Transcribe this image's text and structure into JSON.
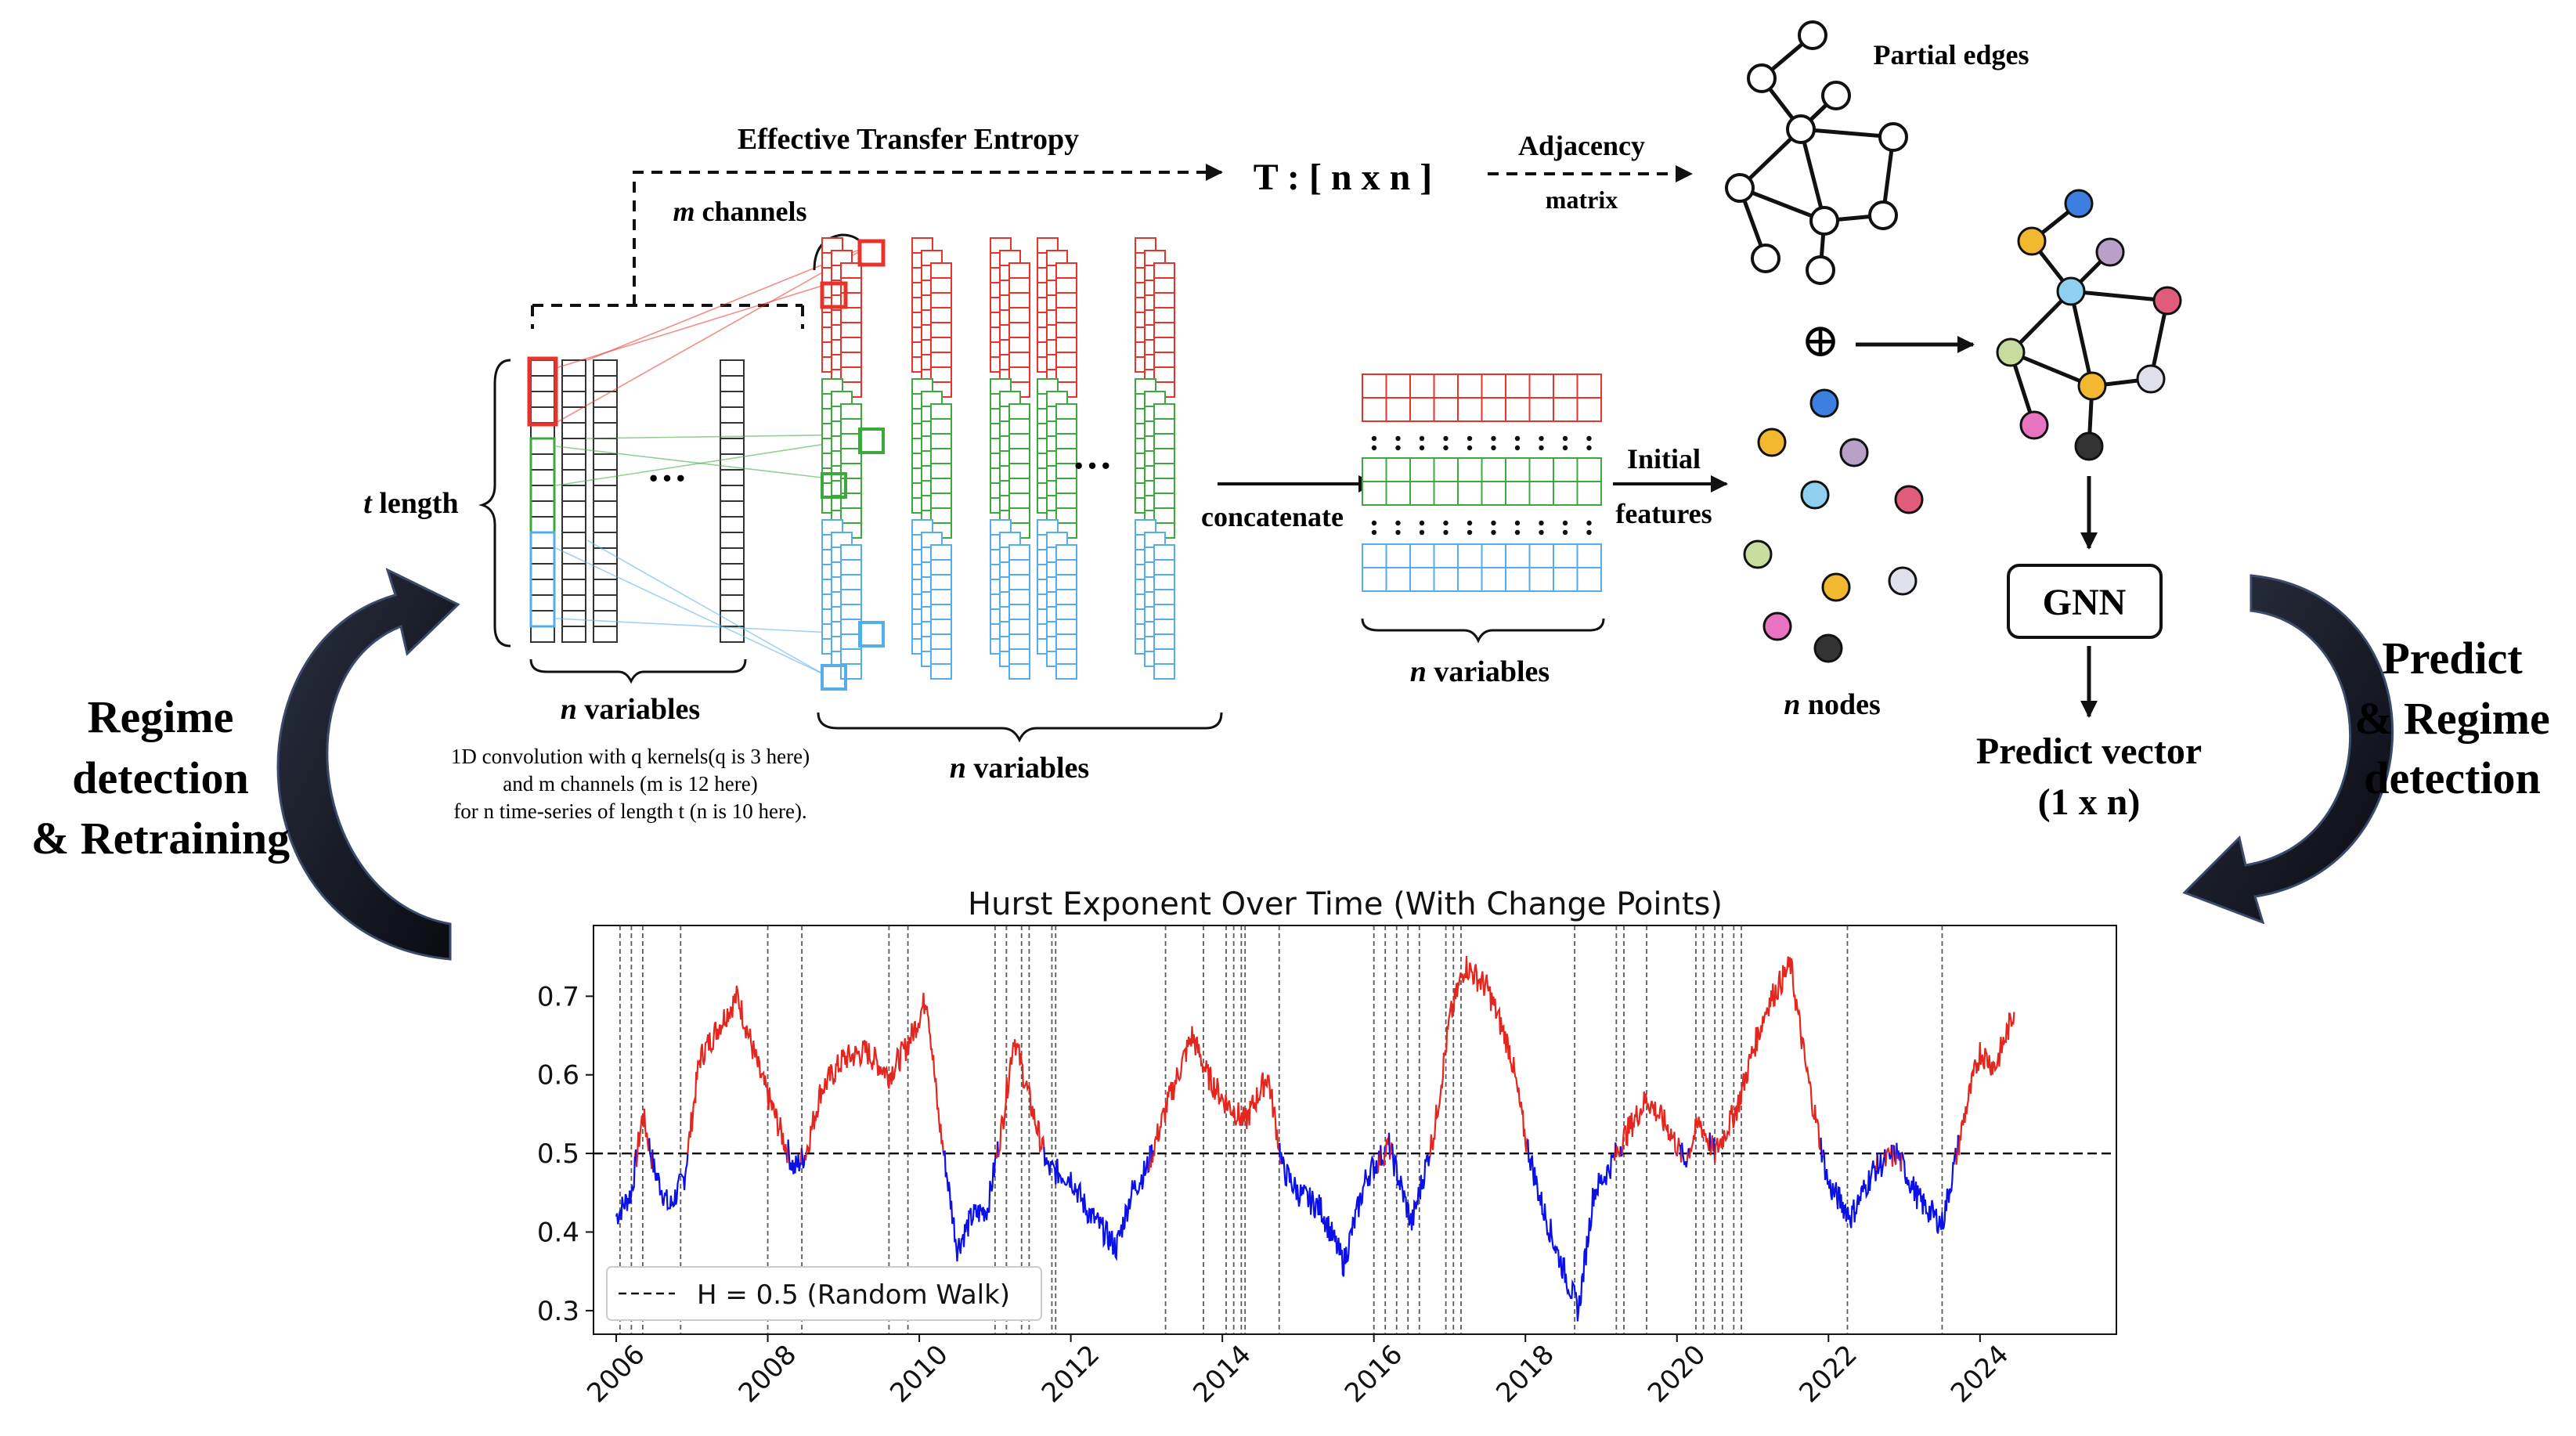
{
  "colors": {
    "red": "#e8332c",
    "green": "#3da83d",
    "blue": "#55aee8",
    "dark": "#222222",
    "chart_red": "#e3261e",
    "chart_blue": "#0a10e6"
  },
  "pipeline": {
    "ete_label": "Effective Transfer Entropy",
    "t_matrix": "T : [ n x n ]",
    "adjacency_line1": "Adjacency",
    "adjacency_line2": "matrix",
    "partial_edges": "Partial edges",
    "m_channels": "m channels",
    "m_channels_italic": "m",
    "m_channels_rest": " channels",
    "t_length_italic": "t",
    "t_length_rest": " length",
    "ellipsis_input": "···",
    "ellipsis_conv": "···",
    "n_variables_input": "n variables",
    "n_variables_conv": "n variables",
    "n_variables_feat": "n variables",
    "n_italic": "n",
    "variables_rest": " variables",
    "caption_line1": "1D convolution with q kernels(q is 3 here)",
    "caption_line2": "and m channels (m is 12 here)",
    "caption_line3": "for n time-series of length t (n is 10 here).",
    "concatenate": "concatenate",
    "initial_line1": "Initial",
    "initial_line2": "features",
    "n_nodes": "n nodes",
    "oplus": "⊕",
    "gnn": "GNN",
    "predict_vector_line1": "Predict vector",
    "predict_vector_line2": "(1 x n)",
    "left_cycle": [
      "Regime",
      "detection",
      "& Retraining"
    ],
    "right_cycle": [
      "Predict",
      "& Regime",
      "detection"
    ]
  },
  "nodes": {
    "colors": [
      "#3d7fe0",
      "#f2b830",
      "#b9a0c8",
      "#8fd0f0",
      "#e05c7a",
      "#c9dca0",
      "#f2b830",
      "#e0e0ea",
      "#e873c0",
      "#333333"
    ]
  },
  "chart_data": {
    "type": "line",
    "title": "Hurst Exponent Over Time (With Change Points)",
    "xlabel": "",
    "ylabel": "",
    "xlim": [
      2005.7,
      2025.8
    ],
    "ylim": [
      0.27,
      0.79
    ],
    "x_ticks": [
      2006,
      2008,
      2010,
      2012,
      2014,
      2016,
      2018,
      2020,
      2022,
      2024
    ],
    "y_ticks": [
      0.3,
      0.4,
      0.5,
      0.6,
      0.7
    ],
    "reference_line": {
      "y": 0.5,
      "label": "H = 0.5 (Random Walk)",
      "style": "dashed"
    },
    "legend": "bottom-left",
    "series_rule": "red where H > 0.5, blue where H <= 0.5",
    "series": [
      {
        "name": "Hurst exponent",
        "x": [
          2006.0,
          2006.2,
          2006.35,
          2006.5,
          2006.7,
          2006.9,
          2007.1,
          2007.4,
          2007.6,
          2007.9,
          2008.2,
          2008.35,
          2008.5,
          2008.7,
          2009.0,
          2009.3,
          2009.6,
          2009.8,
          2009.9,
          2010.1,
          2010.25,
          2010.5,
          2010.7,
          2010.9,
          2011.1,
          2011.25,
          2011.45,
          2011.7,
          2012.0,
          2012.2,
          2012.6,
          2012.8,
          2013.0,
          2013.3,
          2013.6,
          2013.8,
          2014.0,
          2014.3,
          2014.6,
          2014.8,
          2015.0,
          2015.3,
          2015.6,
          2015.9,
          2016.2,
          2016.5,
          2016.8,
          2017.0,
          2017.2,
          2017.5,
          2017.8,
          2018.0,
          2018.2,
          2018.4,
          2018.7,
          2018.9,
          2019.1,
          2019.3,
          2019.6,
          2019.9,
          2020.1,
          2020.3,
          2020.5,
          2020.8,
          2021.0,
          2021.2,
          2021.5,
          2021.7,
          2022.0,
          2022.3,
          2022.6,
          2022.9,
          2023.2,
          2023.5,
          2023.8,
          2024.0,
          2024.2,
          2024.45
        ],
        "y": [
          0.42,
          0.45,
          0.55,
          0.48,
          0.43,
          0.47,
          0.62,
          0.67,
          0.7,
          0.6,
          0.52,
          0.48,
          0.5,
          0.58,
          0.62,
          0.63,
          0.6,
          0.63,
          0.65,
          0.7,
          0.55,
          0.38,
          0.42,
          0.43,
          0.54,
          0.65,
          0.57,
          0.48,
          0.47,
          0.43,
          0.38,
          0.45,
          0.48,
          0.57,
          0.65,
          0.6,
          0.57,
          0.54,
          0.6,
          0.48,
          0.45,
          0.43,
          0.36,
          0.47,
          0.51,
          0.41,
          0.53,
          0.67,
          0.74,
          0.71,
          0.63,
          0.52,
          0.44,
          0.38,
          0.3,
          0.45,
          0.48,
          0.52,
          0.57,
          0.53,
          0.49,
          0.54,
          0.5,
          0.56,
          0.63,
          0.69,
          0.74,
          0.61,
          0.46,
          0.42,
          0.48,
          0.5,
          0.44,
          0.41,
          0.55,
          0.63,
          0.61,
          0.68
        ]
      }
    ],
    "change_points": [
      2006.05,
      2006.2,
      2006.35,
      2006.85,
      2008.0,
      2008.45,
      2009.6,
      2009.85,
      2011.0,
      2011.15,
      2011.35,
      2011.45,
      2011.75,
      2011.8,
      2013.25,
      2013.75,
      2014.05,
      2014.15,
      2014.25,
      2014.3,
      2014.75,
      2016.0,
      2016.15,
      2016.3,
      2016.45,
      2016.6,
      2016.95,
      2017.05,
      2017.15,
      2018.65,
      2019.2,
      2019.3,
      2019.6,
      2020.25,
      2020.35,
      2020.5,
      2020.6,
      2020.75,
      2020.85,
      2022.25,
      2023.5
    ]
  }
}
